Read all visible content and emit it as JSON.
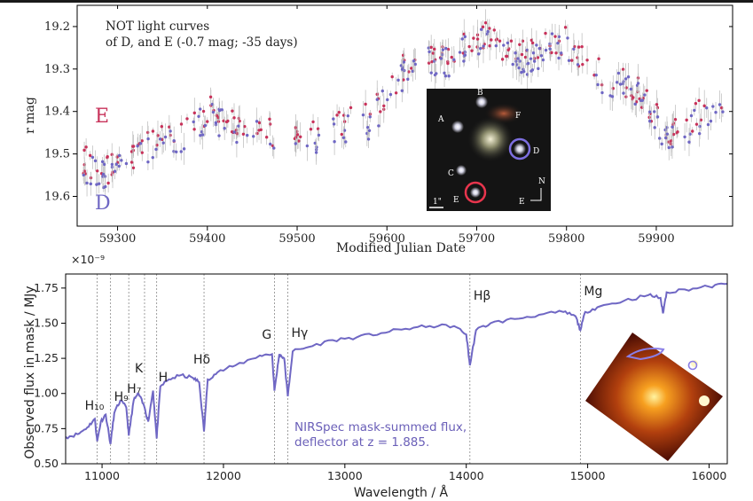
{
  "chart_data": [
    {
      "type": "scatter",
      "annotation": [
        "NOT light curves",
        "of D, and E (-0.7 mag; -35 days)"
      ],
      "xlabel": "Modified Julian Date",
      "ylabel": "r mag",
      "xlim": [
        59255,
        59985
      ],
      "ylim": [
        19.67,
        19.15
      ],
      "y_inverted": true,
      "xticks": [
        59300,
        59400,
        59500,
        59600,
        59700,
        59800,
        59900
      ],
      "yticks": [
        19.2,
        19.3,
        19.4,
        19.5,
        19.6
      ],
      "ytick_labels": [
        "19.2",
        "19.3",
        "19.4",
        "19.5",
        "19.6"
      ],
      "series": [
        {
          "name": "E",
          "color": "#c8325a"
        },
        {
          "name": "D",
          "color": "#6f67c4"
        }
      ],
      "trend": {
        "x": [
          59260,
          59290,
          59320,
          59350,
          59380,
          59400,
          59420,
          59450,
          59480,
          59500,
          59520,
          59550,
          59580,
          59600,
          59620,
          59640,
          59660,
          59680,
          59700,
          59720,
          59740,
          59760,
          59780,
          59800,
          59820,
          59840,
          59860,
          59880,
          59900,
          59920,
          59940,
          59960,
          59980
        ],
        "y": [
          19.52,
          19.54,
          19.5,
          19.47,
          19.44,
          19.4,
          19.42,
          19.44,
          19.46,
          19.45,
          19.46,
          19.43,
          19.42,
          19.36,
          19.3,
          19.27,
          19.28,
          19.26,
          19.22,
          19.24,
          19.26,
          19.27,
          19.24,
          19.24,
          19.28,
          19.31,
          19.33,
          19.35,
          19.42,
          19.46,
          19.42,
          19.4,
          19.38
        ]
      },
      "inset_labels": [
        "A",
        "B",
        "C",
        "D",
        "E",
        "F",
        "N",
        "E",
        "1\""
      ]
    },
    {
      "type": "line",
      "xlabel": "Wavelength / Å",
      "ylabel": "Observed flux in mask / MJy",
      "scale_label": "×10⁻⁹",
      "xlim": [
        10700,
        16150
      ],
      "ylim": [
        0.5,
        1.85
      ],
      "xticks": [
        11000,
        12000,
        13000,
        14000,
        15000,
        16000
      ],
      "yticks": [
        0.5,
        0.75,
        1.0,
        1.25,
        1.5,
        1.75
      ],
      "ytick_labels": [
        "0.50",
        "0.75",
        "1.00",
        "1.25",
        "1.50",
        "1.75"
      ],
      "legend": [
        "NIRSpec mask-summed flux,",
        "deflector at z = 1.885."
      ],
      "color": "#6f67c4",
      "line_ids": [
        {
          "label": "H₁₀",
          "x": 10960
        },
        {
          "label": "H₉",
          "x": 11070
        },
        {
          "label": "H₇",
          "x": 11220
        },
        {
          "label": "K",
          "x": 11350
        },
        {
          "label": "H",
          "x": 11450
        },
        {
          "label": "Hδ",
          "x": 11840
        },
        {
          "label": "G",
          "x": 12420
        },
        {
          "label": "Hγ",
          "x": 12530
        },
        {
          "label": "Hβ",
          "x": 14030
        },
        {
          "label": "Mg",
          "x": 14940
        }
      ],
      "spectrum": {
        "x": [
          10700,
          10800,
          10880,
          10940,
          10960,
          10990,
          11030,
          11070,
          11100,
          11150,
          11200,
          11220,
          11260,
          11300,
          11350,
          11380,
          11420,
          11450,
          11480,
          11550,
          11650,
          11750,
          11800,
          11840,
          11870,
          11950,
          12100,
          12300,
          12400,
          12420,
          12460,
          12500,
          12530,
          12570,
          12700,
          12900,
          13100,
          13300,
          13500,
          13700,
          13900,
          14000,
          14030,
          14080,
          14200,
          14400,
          14600,
          14800,
          14900,
          14940,
          14980,
          15100,
          15300,
          15500,
          15600,
          15620,
          15650,
          15800,
          16000,
          16150
        ],
        "y": [
          0.69,
          0.71,
          0.76,
          0.82,
          0.66,
          0.8,
          0.85,
          0.64,
          0.86,
          0.95,
          0.9,
          0.7,
          0.95,
          1.0,
          0.9,
          0.8,
          1.02,
          0.68,
          1.05,
          1.1,
          1.13,
          1.11,
          1.08,
          0.73,
          1.1,
          1.15,
          1.2,
          1.27,
          1.28,
          1.02,
          1.28,
          1.25,
          0.98,
          1.3,
          1.33,
          1.38,
          1.4,
          1.43,
          1.46,
          1.48,
          1.48,
          1.42,
          1.2,
          1.45,
          1.5,
          1.53,
          1.56,
          1.58,
          1.55,
          1.45,
          1.58,
          1.62,
          1.66,
          1.7,
          1.68,
          1.57,
          1.72,
          1.74,
          1.76,
          1.78
        ]
      }
    }
  ]
}
